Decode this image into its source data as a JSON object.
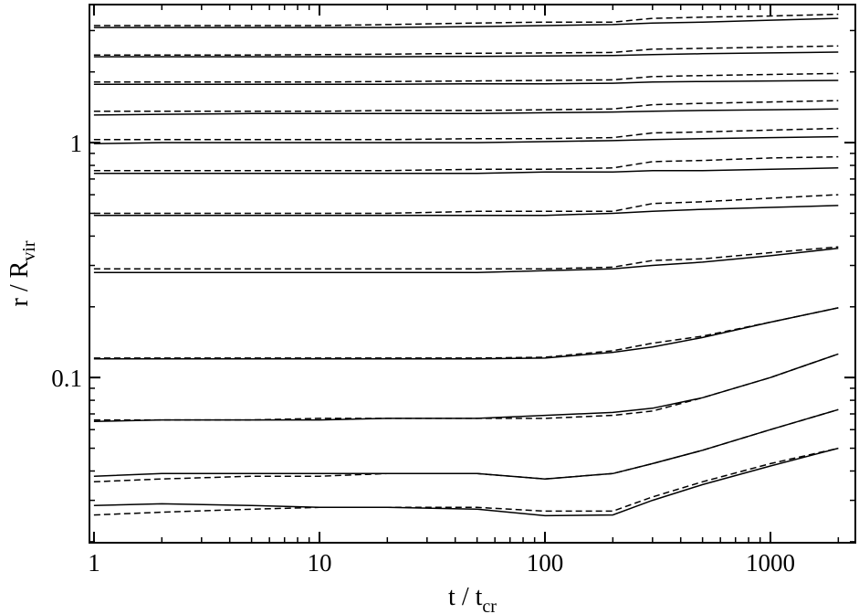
{
  "chart_data": {
    "type": "line",
    "xscale": "log",
    "yscale": "log",
    "xlabel": "t / t",
    "xlabel_sub": "cr",
    "ylabel": "r / R",
    "ylabel_sub": "vir",
    "xlim": [
      0.955,
      2380
    ],
    "ylim": [
      0.0198,
      3.87
    ],
    "xticks": [
      1,
      10,
      100,
      1000
    ],
    "yticks": [
      0.1,
      1
    ],
    "x": [
      1,
      2,
      5,
      10,
      20,
      50,
      100,
      200,
      300,
      500,
      1000,
      2000
    ],
    "series": [
      {
        "color": "#000000",
        "linestyle": "solid",
        "values": [
          3.09,
          3.09,
          3.09,
          3.09,
          3.09,
          3.12,
          3.15,
          3.18,
          3.23,
          3.26,
          3.32,
          3.38
        ]
      },
      {
        "color": "#000000",
        "linestyle": "dashed",
        "values": [
          3.15,
          3.15,
          3.15,
          3.15,
          3.18,
          3.23,
          3.26,
          3.26,
          3.38,
          3.42,
          3.46,
          3.52
        ]
      },
      {
        "color": "#000000",
        "linestyle": "solid",
        "values": [
          2.32,
          2.32,
          2.32,
          2.32,
          2.32,
          2.33,
          2.34,
          2.35,
          2.37,
          2.39,
          2.41,
          2.43
        ]
      },
      {
        "color": "#000000",
        "linestyle": "dashed",
        "values": [
          2.36,
          2.36,
          2.36,
          2.37,
          2.38,
          2.4,
          2.41,
          2.42,
          2.5,
          2.52,
          2.55,
          2.58
        ]
      },
      {
        "color": "#000000",
        "linestyle": "solid",
        "values": [
          1.77,
          1.77,
          1.77,
          1.77,
          1.77,
          1.78,
          1.78,
          1.79,
          1.81,
          1.82,
          1.83,
          1.84
        ]
      },
      {
        "color": "#000000",
        "linestyle": "dashed",
        "values": [
          1.81,
          1.81,
          1.81,
          1.81,
          1.82,
          1.83,
          1.84,
          1.85,
          1.91,
          1.93,
          1.95,
          1.97
        ]
      },
      {
        "color": "#000000",
        "linestyle": "solid",
        "values": [
          1.31,
          1.32,
          1.33,
          1.33,
          1.33,
          1.33,
          1.34,
          1.35,
          1.36,
          1.37,
          1.38,
          1.39
        ]
      },
      {
        "color": "#000000",
        "linestyle": "dashed",
        "values": [
          1.36,
          1.36,
          1.36,
          1.36,
          1.37,
          1.37,
          1.38,
          1.39,
          1.45,
          1.47,
          1.49,
          1.51
        ]
      },
      {
        "color": "#000000",
        "linestyle": "solid",
        "values": [
          0.99,
          1.0,
          1.0,
          1.0,
          1.0,
          1.0,
          1.01,
          1.02,
          1.03,
          1.04,
          1.05,
          1.06
        ]
      },
      {
        "color": "#000000",
        "linestyle": "dashed",
        "values": [
          1.03,
          1.03,
          1.03,
          1.03,
          1.03,
          1.04,
          1.04,
          1.05,
          1.1,
          1.11,
          1.13,
          1.15
        ]
      },
      {
        "color": "#000000",
        "linestyle": "solid",
        "values": [
          0.74,
          0.74,
          0.74,
          0.74,
          0.74,
          0.74,
          0.75,
          0.75,
          0.76,
          0.76,
          0.77,
          0.78
        ]
      },
      {
        "color": "#000000",
        "linestyle": "dashed",
        "values": [
          0.76,
          0.76,
          0.76,
          0.76,
          0.76,
          0.77,
          0.77,
          0.78,
          0.83,
          0.84,
          0.86,
          0.87
        ]
      },
      {
        "color": "#000000",
        "linestyle": "solid",
        "values": [
          0.49,
          0.49,
          0.49,
          0.49,
          0.49,
          0.49,
          0.49,
          0.5,
          0.51,
          0.52,
          0.53,
          0.54
        ]
      },
      {
        "color": "#000000",
        "linestyle": "dashed",
        "values": [
          0.5,
          0.5,
          0.5,
          0.5,
          0.5,
          0.51,
          0.51,
          0.51,
          0.55,
          0.56,
          0.58,
          0.6
        ]
      },
      {
        "color": "#000000",
        "linestyle": "solid",
        "values": [
          0.28,
          0.28,
          0.28,
          0.28,
          0.28,
          0.28,
          0.285,
          0.29,
          0.3,
          0.31,
          0.33,
          0.355
        ]
      },
      {
        "color": "#000000",
        "linestyle": "dashed",
        "values": [
          0.29,
          0.29,
          0.29,
          0.29,
          0.29,
          0.29,
          0.29,
          0.295,
          0.315,
          0.32,
          0.34,
          0.36
        ]
      },
      {
        "color": "#000000",
        "linestyle": "solid",
        "values": [
          0.12,
          0.12,
          0.12,
          0.12,
          0.12,
          0.12,
          0.121,
          0.128,
          0.135,
          0.148,
          0.172,
          0.198
        ]
      },
      {
        "color": "#000000",
        "linestyle": "dashed",
        "values": [
          0.121,
          0.121,
          0.121,
          0.121,
          0.121,
          0.121,
          0.122,
          0.13,
          0.14,
          0.15,
          0.172,
          0.198
        ]
      },
      {
        "color": "#000000",
        "linestyle": "solid",
        "values": [
          0.065,
          0.066,
          0.066,
          0.066,
          0.067,
          0.067,
          0.069,
          0.071,
          0.074,
          0.082,
          0.1,
          0.126
        ]
      },
      {
        "color": "#000000",
        "linestyle": "dashed",
        "values": [
          0.066,
          0.066,
          0.066,
          0.067,
          0.067,
          0.067,
          0.067,
          0.069,
          0.072,
          0.082,
          0.1,
          0.126
        ]
      },
      {
        "color": "#000000",
        "linestyle": "solid",
        "values": [
          0.038,
          0.039,
          0.039,
          0.039,
          0.039,
          0.039,
          0.037,
          0.039,
          0.043,
          0.049,
          0.06,
          0.073
        ]
      },
      {
        "color": "#000000",
        "linestyle": "dashed",
        "values": [
          0.036,
          0.037,
          0.038,
          0.038,
          0.039,
          0.039,
          0.037,
          0.039,
          0.043,
          0.049,
          0.06,
          0.073
        ]
      },
      {
        "color": "#000000",
        "linestyle": "solid",
        "values": [
          0.0285,
          0.029,
          0.0285,
          0.028,
          0.028,
          0.0275,
          0.0258,
          0.026,
          0.03,
          0.035,
          0.042,
          0.05
        ]
      },
      {
        "color": "#000000",
        "linestyle": "dashed",
        "values": [
          0.026,
          0.0267,
          0.0275,
          0.028,
          0.028,
          0.028,
          0.027,
          0.027,
          0.031,
          0.036,
          0.043,
          0.05
        ]
      }
    ]
  }
}
